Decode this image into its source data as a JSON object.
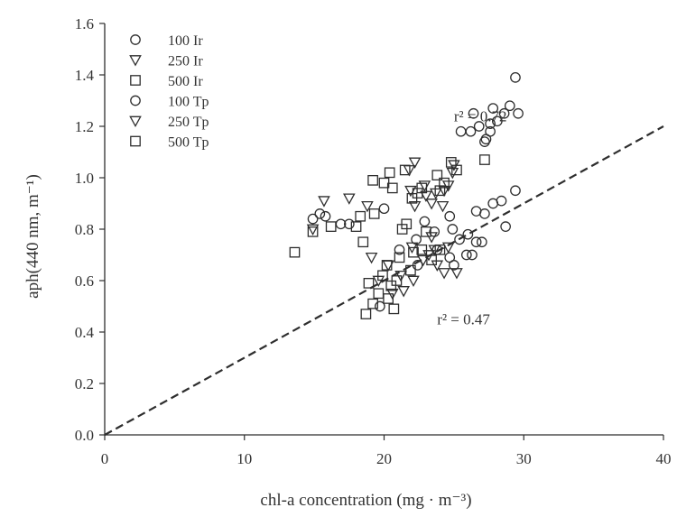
{
  "chart_data": {
    "type": "scatter",
    "title": "",
    "xlabel": "chl-a concentration (mg · m⁻³)",
    "ylabel": "aph(440 nm, m⁻¹)",
    "xlim": [
      0,
      40
    ],
    "ylim": [
      0,
      1.6
    ],
    "x_ticks": [
      "0",
      "10",
      "20",
      "30",
      "40"
    ],
    "y_ticks": [
      "0.0",
      "0.2",
      "0.4",
      "0.6",
      "0.8",
      "1.0",
      "1.2",
      "1.4",
      "1.6"
    ],
    "grid": false,
    "legend_position": "top-left",
    "legend": [
      {
        "label": "100 Ir",
        "marker": "circle"
      },
      {
        "label": "250 Ir",
        "marker": "triangle-down"
      },
      {
        "label": "500 Ir",
        "marker": "square"
      },
      {
        "label": "100 Tp",
        "marker": "circle"
      },
      {
        "label": "250 Tp",
        "marker": "triangle-down"
      },
      {
        "label": "500 Tp",
        "marker": "square"
      }
    ],
    "annotations": [
      {
        "text": "r² = 0.72",
        "x": 25,
        "y": 1.22
      },
      {
        "text": "r² = 0.47",
        "x": 23.8,
        "y": 0.43
      }
    ],
    "reference_line": {
      "style": "dashed",
      "x": [
        0,
        40
      ],
      "y": [
        0,
        1.2
      ]
    },
    "series": [
      {
        "label": "100 Ir",
        "marker": "circle",
        "points": [
          [
            26.4,
            1.25
          ],
          [
            27.8,
            1.27
          ],
          [
            29.4,
            1.39
          ],
          [
            29.0,
            1.28
          ],
          [
            29.6,
            1.25
          ],
          [
            26.2,
            1.18
          ],
          [
            25.5,
            1.18
          ],
          [
            26.8,
            1.2
          ],
          [
            27.3,
            1.15
          ],
          [
            27.6,
            1.18
          ],
          [
            28.1,
            1.22
          ],
          [
            28.6,
            1.25
          ],
          [
            27.2,
            1.14
          ],
          [
            27.6,
            1.21
          ]
        ]
      },
      {
        "label": "250 Ir",
        "marker": "triangle-down",
        "points": [
          [
            17.5,
            0.92
          ],
          [
            18.8,
            0.89
          ],
          [
            21.8,
            1.03
          ],
          [
            22.2,
            1.06
          ],
          [
            22.9,
            0.97
          ],
          [
            23.7,
            0.94
          ],
          [
            24.6,
            0.97
          ],
          [
            22.2,
            0.89
          ],
          [
            21.9,
            0.95
          ],
          [
            23.0,
            0.93
          ],
          [
            24.2,
            0.89
          ],
          [
            24.9,
            1.02
          ],
          [
            25.0,
            1.05
          ],
          [
            23.4,
            0.9
          ],
          [
            24.3,
            0.95
          ]
        ]
      },
      {
        "label": "500 Ir",
        "marker": "square",
        "points": [
          [
            13.6,
            0.71
          ],
          [
            14.9,
            0.79
          ],
          [
            16.2,
            0.81
          ],
          [
            18.3,
            0.85
          ],
          [
            18.5,
            0.75
          ],
          [
            19.3,
            0.86
          ],
          [
            20.0,
            0.98
          ],
          [
            20.4,
            1.02
          ],
          [
            20.6,
            0.96
          ],
          [
            21.5,
            1.03
          ],
          [
            22.4,
            0.94
          ],
          [
            22.0,
            0.92
          ],
          [
            23.8,
            1.01
          ],
          [
            24.8,
            1.06
          ],
          [
            25.2,
            1.03
          ],
          [
            27.2,
            1.07
          ],
          [
            19.2,
            0.99
          ],
          [
            24.0,
            0.95
          ],
          [
            22.7,
            0.96
          ],
          [
            24.3,
            0.98
          ]
        ]
      },
      {
        "label": "100 Tp",
        "marker": "circle",
        "points": [
          [
            14.9,
            0.84
          ],
          [
            15.4,
            0.86
          ],
          [
            15.8,
            0.85
          ],
          [
            16.9,
            0.82
          ],
          [
            17.5,
            0.82
          ],
          [
            20.0,
            0.88
          ],
          [
            22.3,
            0.76
          ],
          [
            22.9,
            0.83
          ],
          [
            23.6,
            0.79
          ],
          [
            24.7,
            0.85
          ],
          [
            24.9,
            0.8
          ],
          [
            25.4,
            0.76
          ],
          [
            26.0,
            0.78
          ],
          [
            26.3,
            0.7
          ],
          [
            26.6,
            0.75
          ],
          [
            27.0,
            0.75
          ],
          [
            26.6,
            0.87
          ],
          [
            27.2,
            0.86
          ],
          [
            27.8,
            0.9
          ],
          [
            28.4,
            0.91
          ],
          [
            28.7,
            0.81
          ],
          [
            29.4,
            0.95
          ],
          [
            25.0,
            0.66
          ],
          [
            24.7,
            0.69
          ],
          [
            25.9,
            0.7
          ],
          [
            23.8,
            0.72
          ],
          [
            21.1,
            0.72
          ],
          [
            22.4,
            0.66
          ],
          [
            19.7,
            0.5
          ]
        ]
      },
      {
        "label": "250 Tp",
        "marker": "triangle-down",
        "points": [
          [
            14.9,
            0.8
          ],
          [
            15.7,
            0.91
          ],
          [
            19.1,
            0.69
          ],
          [
            20.3,
            0.66
          ],
          [
            21.2,
            0.62
          ],
          [
            21.4,
            0.56
          ],
          [
            22.1,
            0.6
          ],
          [
            22.8,
            0.68
          ],
          [
            23.6,
            0.72
          ],
          [
            24.6,
            0.73
          ],
          [
            23.4,
            0.77
          ],
          [
            24.3,
            0.63
          ],
          [
            25.2,
            0.63
          ],
          [
            20.6,
            0.55
          ],
          [
            19.6,
            0.6
          ],
          [
            23.2,
            0.7
          ],
          [
            23.8,
            0.66
          ],
          [
            22.0,
            0.73
          ]
        ]
      },
      {
        "label": "500 Tp",
        "marker": "square",
        "points": [
          [
            18.0,
            0.81
          ],
          [
            18.7,
            0.47
          ],
          [
            19.2,
            0.51
          ],
          [
            19.6,
            0.55
          ],
          [
            19.9,
            0.62
          ],
          [
            20.2,
            0.66
          ],
          [
            20.5,
            0.58
          ],
          [
            20.7,
            0.49
          ],
          [
            20.9,
            0.6
          ],
          [
            21.1,
            0.69
          ],
          [
            21.3,
            0.8
          ],
          [
            21.6,
            0.82
          ],
          [
            21.9,
            0.64
          ],
          [
            22.1,
            0.71
          ],
          [
            22.7,
            0.72
          ],
          [
            23.0,
            0.79
          ],
          [
            23.4,
            0.68
          ],
          [
            24.0,
            0.72
          ],
          [
            20.3,
            0.53
          ],
          [
            18.9,
            0.59
          ]
        ]
      }
    ]
  }
}
